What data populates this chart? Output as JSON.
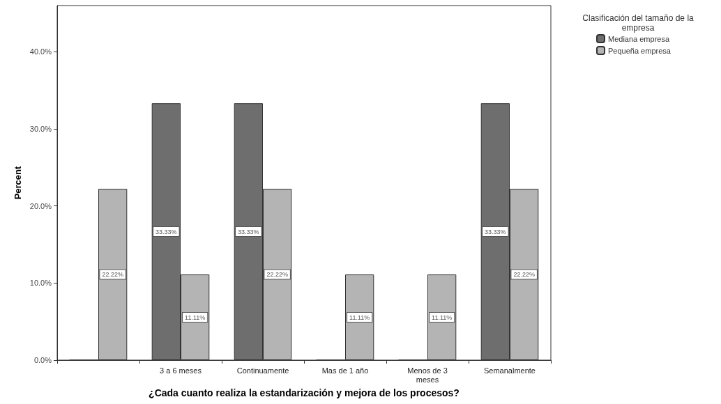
{
  "chart_data": {
    "type": "bar",
    "xlabel": "¿Cada cuanto realiza la estandarización y mejora de los procesos?",
    "ylabel": "Percent",
    "legend_title": "Clasificación del tamaño de la\nempresa",
    "categories": [
      null,
      "3 a 6 meses",
      "Continuamente",
      "Mas de 1 año",
      "Menos de 3\nmeses",
      "Semanalmente"
    ],
    "series": [
      {
        "name": "Mediana empresa",
        "color": "#6e6e6e",
        "values": [
          0,
          33.33,
          33.33,
          0,
          0,
          33.33
        ],
        "value_labels": [
          null,
          "33.33%",
          "33.33%",
          null,
          null,
          "33.33%"
        ]
      },
      {
        "name": "Pequeña empresa",
        "color": "#b4b4b4",
        "values": [
          22.22,
          11.11,
          22.22,
          11.11,
          11.11,
          22.22
        ],
        "value_labels": [
          "22.22%",
          "11.11%",
          "22.22%",
          "11.11%",
          "11.11%",
          "22.22%"
        ]
      }
    ],
    "ylim": [
      0,
      46
    ],
    "yticks": [
      {
        "value": 0,
        "label": "0.0%"
      },
      {
        "value": 10,
        "label": "10.0%"
      },
      {
        "value": 20,
        "label": "20.0%"
      },
      {
        "value": 30,
        "label": "30.0%"
      },
      {
        "value": 40,
        "label": "40.0%"
      }
    ],
    "grid": false,
    "legend": "top right"
  }
}
